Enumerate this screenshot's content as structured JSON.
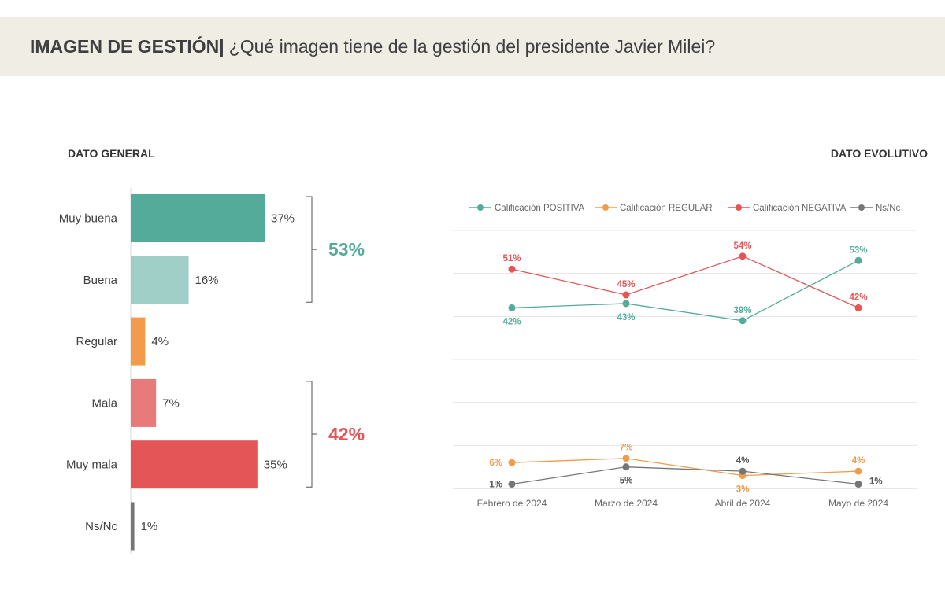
{
  "header": {
    "title_bold": "IMAGEN DE GESTIÓN|",
    "question": "¿Qué imagen tiene de la gestión del presidente Javier Milei?"
  },
  "left_section_label": "DATO GENERAL",
  "right_section_label": "DATO EVOLUTIVO",
  "colors": {
    "positive": "#55ab99",
    "positive_light": "#9fcfc7",
    "regular": "#f29b4b",
    "negative_light": "#e77a7a",
    "negative": "#e35557",
    "nsnc": "#767676"
  },
  "chart_data": [
    {
      "type": "bar",
      "orientation": "horizontal",
      "title": "DATO GENERAL",
      "categories": [
        "Muy buena",
        "Buena",
        "Regular",
        "Mala",
        "Muy mala",
        "Ns/Nc"
      ],
      "values": [
        37,
        16,
        4,
        7,
        35,
        1
      ],
      "value_labels": [
        "37%",
        "16%",
        "4%",
        "7%",
        "35%",
        "1%"
      ],
      "bar_colors": [
        "#55ab99",
        "#9fcfc7",
        "#f29b4b",
        "#e77a7a",
        "#e35557",
        "#767676"
      ],
      "xlim": [
        0,
        40
      ],
      "groups": [
        {
          "label": "53%",
          "categories": [
            "Muy buena",
            "Buena"
          ],
          "color": "#55ab99"
        },
        {
          "label": "42%",
          "categories": [
            "Mala",
            "Muy mala"
          ],
          "color": "#e35557"
        }
      ]
    },
    {
      "type": "line",
      "title": "DATO EVOLUTIVO",
      "x": [
        "Febrero de 2024",
        "Marzo de 2024",
        "Abril de 2024",
        "Mayo de 2024"
      ],
      "ylim": [
        0,
        60
      ],
      "grid": true,
      "legend": "top",
      "series": [
        {
          "name": "Calificación POSITIVA",
          "values": [
            42,
            43,
            39,
            53
          ],
          "labels": [
            "42%",
            "43%",
            "39%",
            "53%"
          ],
          "label_pos": [
            "below",
            "below",
            "above",
            "above"
          ],
          "color": "#55ab99"
        },
        {
          "name": "Calificación REGULAR",
          "values": [
            6,
            7,
            3,
            4
          ],
          "labels": [
            "6%",
            "7%",
            "3%",
            "4%"
          ],
          "label_pos": [
            "left",
            "above",
            "below",
            "above"
          ],
          "color": "#f29b4b"
        },
        {
          "name": "Calificación NEGATIVA",
          "values": [
            51,
            45,
            54,
            42
          ],
          "labels": [
            "51%",
            "45%",
            "54%",
            "42%"
          ],
          "label_pos": [
            "above",
            "above",
            "above",
            "above"
          ],
          "color": "#e35557"
        },
        {
          "name": "Ns/Nc",
          "values": [
            1,
            5,
            4,
            1
          ],
          "labels": [
            "1%",
            "5%",
            "4%",
            "1%"
          ],
          "label_pos": [
            "left",
            "below",
            "above",
            "right"
          ],
          "color": "#767676"
        }
      ]
    }
  ]
}
